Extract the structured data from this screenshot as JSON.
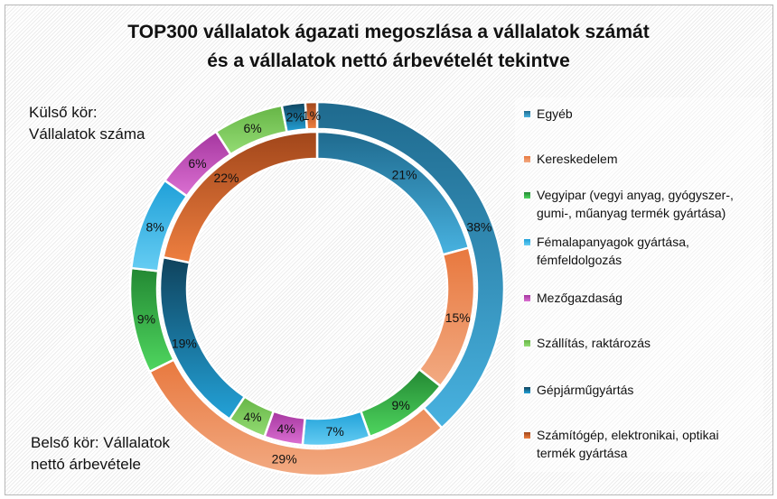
{
  "chart_data": {
    "type": "pie",
    "subtype": "double-donut",
    "title_lines": [
      "TOP300 vállalatok ágazati megoszlása a vállalatok számát",
      "és a vállalatok nettó árbevételét tekintve"
    ],
    "categories": [
      "Egyéb",
      "Kereskedelem",
      "Vegyipar (vegyi anyag, gyógyszer-, gumi-, műanyag termék gyártása)",
      "Fémalapanyagok gyártása, fémfeldolgozás",
      "Mezőgazdaság",
      "Szállítás, raktározás",
      "Gépjárműgyártás",
      "Számítógép, elektronikai, optikai termék gyártása"
    ],
    "legend_lines": [
      [
        "Egyéb"
      ],
      [
        "Kereskedelem"
      ],
      [
        "Vegyipar (vegyi anyag, gyógyszer-,",
        "gumi-, műanyag termék gyártása)"
      ],
      [
        "Fémalapanyagok gyártása,",
        "fémfeldolgozás"
      ],
      [
        "Mezőgazdaság"
      ],
      [
        "Szállítás, raktározás"
      ],
      [
        "Gépjárműgyártás"
      ],
      [
        "Számítógép, elektronikai, optikai",
        "termék gyártása"
      ]
    ],
    "series": [
      {
        "name": "Vállalatok száma",
        "ring": "outer",
        "values": [
          38,
          29,
          9,
          8,
          6,
          6,
          2,
          1
        ]
      },
      {
        "name": "Vállalatok nettó árbevétele",
        "ring": "inner",
        "values": [
          21,
          15,
          9,
          7,
          4,
          4,
          19,
          22
        ]
      }
    ],
    "unit": "%",
    "legend_position": "right",
    "colors": [
      [
        "#1f6a8e",
        "#48b2e0"
      ],
      [
        "#e8783e",
        "#f2aa82"
      ],
      [
        "#238833",
        "#4fd65f"
      ],
      [
        "#1fa0d8",
        "#66cdf3"
      ],
      [
        "#a5369f",
        "#db70d2"
      ],
      [
        "#66b546",
        "#94dc74"
      ],
      [
        "#0f425c",
        "#23a2d8"
      ],
      [
        "#a1461a",
        "#ee7f40"
      ]
    ]
  },
  "annotations": {
    "outer_line1": "Külső kör:",
    "outer_line2": "Vállalatok száma",
    "inner_line1": "Belső kör: Vállalatok",
    "inner_line2": "nettó árbevétele"
  }
}
